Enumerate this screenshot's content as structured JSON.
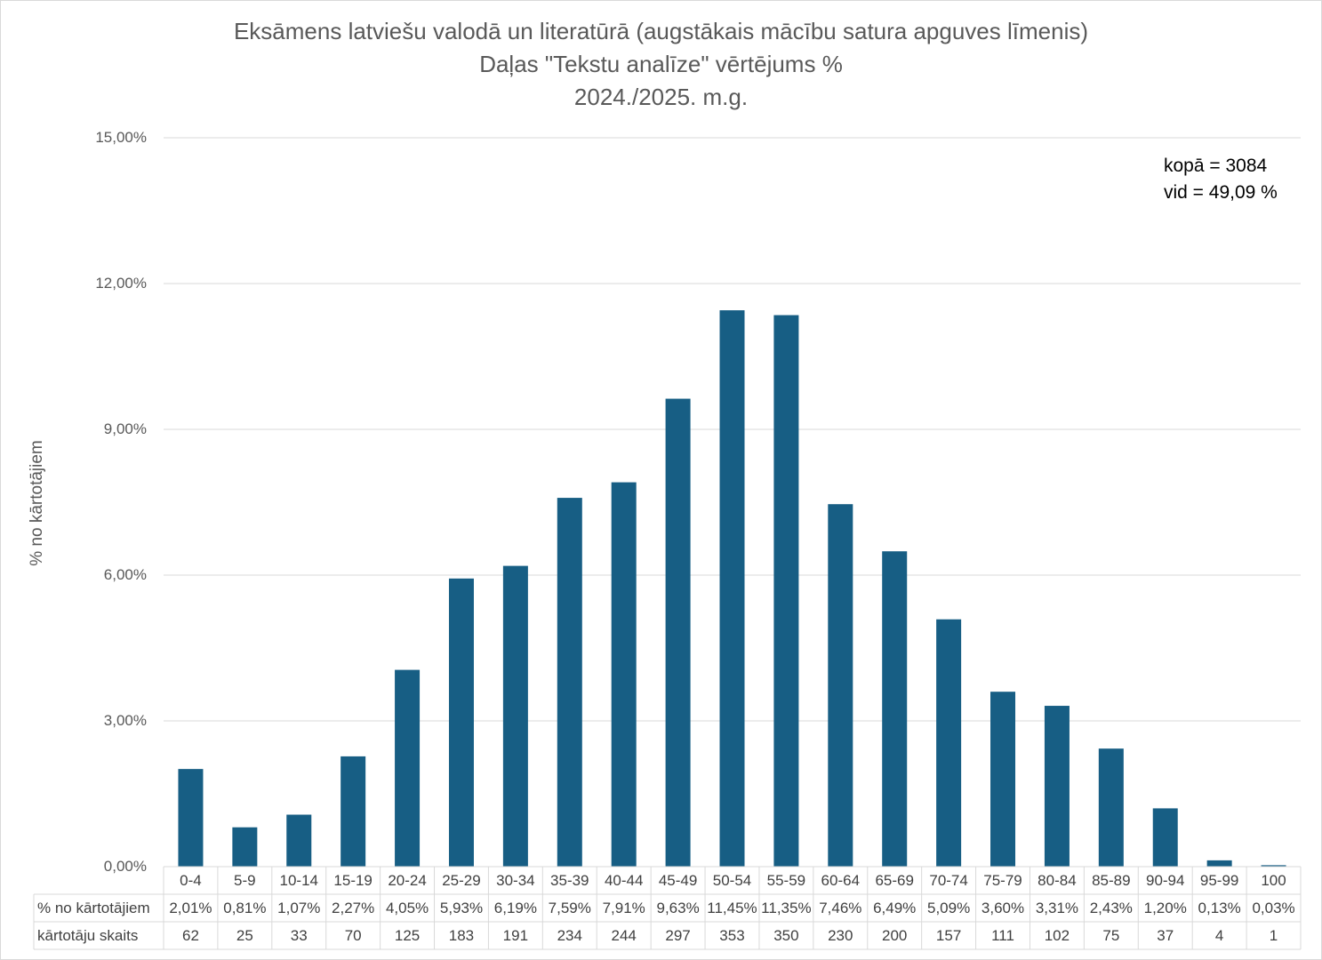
{
  "chart_data": {
    "type": "bar",
    "title": "Eksāmens latviešu valodā un literatūrā (augstākais mācību satura apguves līmenis)",
    "subtitle": "Daļas \"Tekstu analīze\" vērtējums %",
    "subtitle2": "2024./2025. m.g.",
    "ylabel": "% no kārtotājiem",
    "ylim": [
      0,
      15
    ],
    "yticks": [
      "0,00%",
      "3,00%",
      "6,00%",
      "9,00%",
      "12,00%",
      "15,00%"
    ],
    "grid": true,
    "bar_color": "#175e84",
    "categories": [
      "0-4",
      "5-9",
      "10-14",
      "15-19",
      "20-24",
      "25-29",
      "30-34",
      "35-39",
      "40-44",
      "45-49",
      "50-54",
      "55-59",
      "60-64",
      "65-69",
      "70-74",
      "75-79",
      "80-84",
      "85-89",
      "90-94",
      "95-99",
      "100"
    ],
    "values": [
      2.01,
      0.81,
      1.07,
      2.27,
      4.05,
      5.93,
      6.19,
      7.59,
      7.91,
      9.63,
      11.45,
      11.35,
      7.46,
      6.49,
      5.09,
      3.6,
      3.31,
      2.43,
      1.2,
      0.13,
      0.03
    ],
    "table": {
      "row1_label": "% no kārtotājiem",
      "row1": [
        "2,01%",
        "0,81%",
        "1,07%",
        "2,27%",
        "4,05%",
        "5,93%",
        "6,19%",
        "7,59%",
        "7,91%",
        "9,63%",
        "11,45%",
        "11,35%",
        "7,46%",
        "6,49%",
        "5,09%",
        "3,60%",
        "3,31%",
        "2,43%",
        "1,20%",
        "0,13%",
        "0,03%"
      ],
      "row2_label": "kārtotāju skaits",
      "row2": [
        "62",
        "25",
        "33",
        "70",
        "125",
        "183",
        "191",
        "234",
        "244",
        "297",
        "353",
        "350",
        "230",
        "200",
        "157",
        "111",
        "102",
        "75",
        "37",
        "4",
        "1"
      ]
    },
    "annotations": [
      "kopā = 3084",
      "vid = 49,09 %"
    ]
  }
}
